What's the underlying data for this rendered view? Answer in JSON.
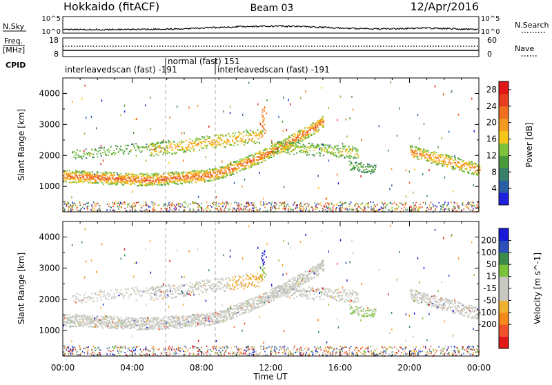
{
  "header": {
    "station": "Hokkaido (fitACF)",
    "beam": "Beam 03",
    "date": "12/Apr/2016"
  },
  "status_panels": {
    "nsky_label": "N.Sky",
    "nsky_ticks": [
      "10^5",
      "10^0"
    ],
    "nsearch_label": "N.Search",
    "nsearch_ticks": [
      "10^5",
      "10^0"
    ],
    "freq_label": "Freq.",
    "freq_unit": "[MHz]",
    "freq_ticks": [
      "18",
      "8"
    ],
    "nave_label": "Nave",
    "nave_ticks": [
      "60",
      "0"
    ],
    "cpid_label": "CPID",
    "cpid_segments": [
      {
        "text": "interleavedscan (fast) -191",
        "start_hour": 0
      },
      {
        "text": "normal (fast) 151",
        "start_hour": 6
      },
      {
        "text": "interleavedscan (fast) -191",
        "start_hour": 8.83
      }
    ]
  },
  "colors": {
    "power_scale": [
      "#1f1fe0",
      "#2a5fa8",
      "#3a7f6a",
      "#4a9a3a",
      "#7cc23a",
      "#f5c518",
      "#f59a20",
      "#f07020",
      "#e8401f",
      "#e01818"
    ],
    "velocity_scale": [
      "#e01818",
      "#f0502a",
      "#f58a1a",
      "#f0b030",
      "#c8c8c0",
      "#c8c8c0",
      "#7cc23a",
      "#3a8a4a",
      "#2a4fb8",
      "#1818d8"
    ],
    "scatter_gray": "#c8c8c0"
  },
  "chart_data": [
    {
      "type": "heatmap",
      "name": "power",
      "ylabel": "Slant Range [km]",
      "ylim": [
        180,
        4500
      ],
      "yticks": [
        "1000",
        "2000",
        "3000",
        "4000"
      ],
      "colorbar_label": "Power [dB]",
      "colorbar_ticks": [
        "4",
        "8",
        "12",
        "16",
        "20",
        "24",
        "28"
      ],
      "colorbar_range": [
        0,
        30
      ]
    },
    {
      "type": "heatmap",
      "name": "velocity",
      "ylabel": "Slant Range [km]",
      "ylim": [
        180,
        4500
      ],
      "yticks": [
        "1000",
        "2000",
        "3000",
        "4000"
      ],
      "colorbar_label": "Velocity [m s^-1]",
      "colorbar_ticks": [
        "200",
        "100",
        "50",
        "15",
        "-15",
        "-50",
        "-100",
        "-200"
      ]
    }
  ],
  "time_axis": {
    "xlabel": "Time UT",
    "xlim": [
      0,
      24
    ],
    "ticks": [
      "00:00",
      "04:00",
      "08:00",
      "12:00",
      "16:00",
      "20:00",
      "00:00"
    ]
  }
}
